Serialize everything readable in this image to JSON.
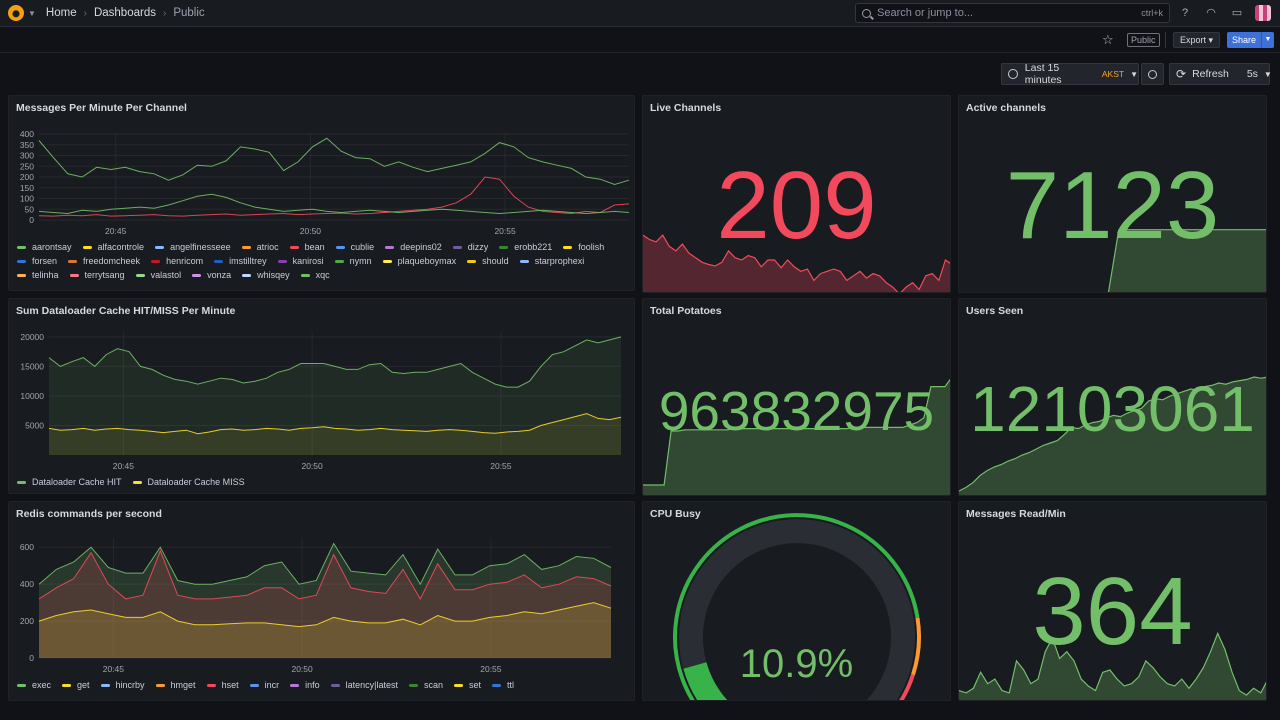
{
  "topbar": {
    "breadcrumb": [
      "Home",
      "Dashboards",
      "Public"
    ],
    "search_placeholder": "Search or jump to...",
    "search_shortcut": "ctrl+k"
  },
  "toolbar": {
    "public_tag": "Public",
    "export_label": "Export",
    "share_label": "Share",
    "time_range": "Last 15 minutes",
    "timezone": "AKST",
    "refresh_label": "Refresh",
    "refresh_interval": "5s"
  },
  "panels": {
    "messages": {
      "title": "Messages Per Minute Per Channel",
      "legend": [
        {
          "name": "aarontsay",
          "color": "#73bf69"
        },
        {
          "name": "alfacontrole",
          "color": "#fade2a"
        },
        {
          "name": "angelfinesseee",
          "color": "#8ab8ff"
        },
        {
          "name": "atrioc",
          "color": "#ff9830"
        },
        {
          "name": "bean",
          "color": "#f2495c"
        },
        {
          "name": "cublie",
          "color": "#5794f2"
        },
        {
          "name": "deepins02",
          "color": "#b877d9"
        },
        {
          "name": "dizzy",
          "color": "#705da0"
        },
        {
          "name": "erobb221",
          "color": "#37872d"
        },
        {
          "name": "foolish",
          "color": "#fade2a"
        },
        {
          "name": "forsen",
          "color": "#3274d9"
        },
        {
          "name": "freedomcheek",
          "color": "#e0752d"
        },
        {
          "name": "henricom",
          "color": "#c4162a"
        },
        {
          "name": "imstilltrey",
          "color": "#1f60c4"
        },
        {
          "name": "kanirosi",
          "color": "#8f3bb8"
        },
        {
          "name": "nymn",
          "color": "#56a64b"
        },
        {
          "name": "plaqueboymax",
          "color": "#ffee52"
        },
        {
          "name": "should",
          "color": "#f2cc0c"
        },
        {
          "name": "starprophexi",
          "color": "#8ab8ff"
        },
        {
          "name": "telinha",
          "color": "#ffb357"
        },
        {
          "name": "terrytsang",
          "color": "#ff7383"
        },
        {
          "name": "valastol",
          "color": "#96d98d"
        },
        {
          "name": "vonza",
          "color": "#ca95e5"
        },
        {
          "name": "whisqey",
          "color": "#c0d8ff"
        },
        {
          "name": "xqc",
          "color": "#73bf69"
        }
      ]
    },
    "cache": {
      "title": "Sum Dataloader Cache HIT/MISS Per Minute",
      "legend": [
        {
          "name": "Dataloader Cache HIT",
          "color": "#73bf69"
        },
        {
          "name": "Dataloader Cache MISS",
          "color": "#fade2a"
        }
      ]
    },
    "redis": {
      "title": "Redis commands per second",
      "legend": [
        {
          "name": "exec",
          "color": "#73bf69"
        },
        {
          "name": "get",
          "color": "#fade2a"
        },
        {
          "name": "hincrby",
          "color": "#8ab8ff"
        },
        {
          "name": "hmget",
          "color": "#ff9830"
        },
        {
          "name": "hset",
          "color": "#f2495c"
        },
        {
          "name": "incr",
          "color": "#5794f2"
        },
        {
          "name": "info",
          "color": "#b877d9"
        },
        {
          "name": "latency|latest",
          "color": "#705da0"
        },
        {
          "name": "scan",
          "color": "#37872d"
        },
        {
          "name": "set",
          "color": "#fade2a"
        },
        {
          "name": "ttl",
          "color": "#3274d9"
        }
      ]
    },
    "live_channels": {
      "title": "Live Channels",
      "value": "209",
      "color": "#f2495c"
    },
    "active_channels": {
      "title": "Active channels",
      "value": "7123",
      "color": "#73bf69"
    },
    "total_potatoes": {
      "title": "Total Potatoes",
      "value": "963832975",
      "color": "#73bf69"
    },
    "users_seen": {
      "title": "Users Seen",
      "value": "12103061",
      "color": "#73bf69"
    },
    "cpu_busy": {
      "title": "CPU Busy",
      "value": "10.9%",
      "percent": 10.9,
      "color": "#73bf69"
    },
    "messages_read": {
      "title": "Messages Read/Min",
      "value": "364",
      "color": "#73bf69"
    }
  },
  "chart_data": [
    {
      "type": "line",
      "title": "Messages Per Minute Per Channel",
      "x_ticks": [
        "20:45",
        "20:50",
        "20:55"
      ],
      "ylim": [
        0,
        400
      ],
      "y_ticks": [
        0,
        50,
        100,
        150,
        200,
        250,
        300,
        350,
        400
      ],
      "series": [
        {
          "name": "xqc",
          "values": [
            370,
            290,
            215,
            200,
            245,
            235,
            245,
            225,
            215,
            185,
            210,
            255,
            250,
            275,
            340,
            330,
            315,
            230,
            270,
            340,
            380,
            320,
            290,
            285,
            250,
            270,
            245,
            225,
            240,
            255,
            270,
            310,
            360,
            340,
            290,
            270,
            255,
            240,
            200,
            190,
            165,
            185
          ]
        },
        {
          "name": "bean",
          "values": [
            20,
            18,
            22,
            20,
            25,
            18,
            20,
            22,
            25,
            20,
            18,
            22,
            25,
            28,
            22,
            25,
            28,
            30,
            25,
            28,
            30,
            32,
            28,
            30,
            35,
            40,
            45,
            50,
            60,
            80,
            120,
            200,
            190,
            110,
            60,
            40,
            35,
            30,
            40,
            35,
            70,
            75
          ]
        },
        {
          "name": "aarontsay",
          "values": [
            40,
            35,
            30,
            45,
            40,
            50,
            55,
            60,
            55,
            70,
            90,
            110,
            120,
            105,
            80,
            60,
            50,
            40,
            45,
            50,
            40,
            35,
            40,
            45,
            40,
            35,
            40,
            45,
            50,
            45,
            40,
            35,
            30,
            35,
            40,
            45,
            40,
            35,
            30,
            35,
            40,
            35
          ]
        }
      ]
    },
    {
      "type": "area",
      "title": "Sum Dataloader Cache HIT/MISS Per Minute",
      "x_ticks": [
        "20:45",
        "20:50",
        "20:55"
      ],
      "ylim": [
        0,
        21000
      ],
      "y_ticks": [
        5000,
        10000,
        15000,
        20000
      ],
      "series": [
        {
          "name": "Dataloader Cache HIT",
          "values": [
            16500,
            15000,
            15800,
            16500,
            15000,
            17000,
            18000,
            17500,
            15000,
            14500,
            13500,
            12800,
            12500,
            12000,
            12500,
            13000,
            12800,
            12200,
            12500,
            13000,
            14000,
            14500,
            15500,
            15500,
            15500,
            15000,
            14500,
            14500,
            15300,
            15500,
            14000,
            13800,
            14000,
            14000,
            14500,
            15000,
            15500,
            14000,
            13000,
            12000,
            11500,
            11500,
            12500,
            15000,
            17000,
            17500,
            18500,
            19500,
            19000,
            19500,
            20000
          ]
        },
        {
          "name": "Dataloader Cache MISS",
          "values": [
            4500,
            4200,
            4300,
            4500,
            4200,
            4400,
            4500,
            4300,
            4200,
            4000,
            3800,
            4000,
            4200,
            3600,
            3900,
            4300,
            4400,
            4200,
            4300,
            4500,
            4400,
            4200,
            4500,
            4600,
            4800,
            4500,
            4400,
            4200,
            4300,
            4500,
            4300,
            4200,
            4100,
            4000,
            4200,
            4300,
            4200,
            4000,
            3800,
            3700,
            3900,
            4000,
            4200,
            5000,
            5500,
            6000,
            6500,
            7000,
            6200,
            6000,
            6400
          ]
        }
      ]
    },
    {
      "type": "area",
      "title": "Redis commands per second",
      "x_ticks": [
        "20:45",
        "20:50",
        "20:55"
      ],
      "ylim": [
        0,
        650
      ],
      "y_ticks": [
        0,
        200,
        400,
        600
      ],
      "series": [
        {
          "name": "exec",
          "values": [
            400,
            480,
            520,
            600,
            490,
            460,
            460,
            600,
            420,
            400,
            400,
            420,
            440,
            500,
            520,
            400,
            420,
            620,
            470,
            460,
            450,
            560,
            400,
            590,
            450,
            450,
            500,
            510,
            560,
            480,
            500,
            550,
            540,
            490
          ]
        },
        {
          "name": "hset",
          "values": [
            320,
            380,
            430,
            570,
            400,
            320,
            340,
            580,
            340,
            320,
            320,
            330,
            340,
            380,
            380,
            320,
            340,
            560,
            380,
            360,
            350,
            480,
            320,
            510,
            370,
            370,
            400,
            410,
            450,
            380,
            400,
            440,
            430,
            390
          ]
        },
        {
          "name": "get",
          "values": [
            200,
            230,
            250,
            260,
            240,
            220,
            220,
            250,
            200,
            180,
            180,
            185,
            190,
            190,
            180,
            170,
            180,
            220,
            200,
            190,
            190,
            210,
            180,
            230,
            200,
            200,
            220,
            230,
            250,
            240,
            260,
            280,
            300,
            270
          ]
        }
      ]
    },
    {
      "type": "area",
      "title": "Live Channels",
      "values": [
        280,
        270,
        265,
        280,
        255,
        245,
        260,
        240,
        230,
        220,
        215,
        212,
        220,
        245,
        230,
        225,
        235,
        230,
        210,
        225,
        225,
        208,
        225,
        210,
        200,
        205,
        180,
        195,
        200,
        205,
        200,
        180,
        190,
        200,
        185,
        195,
        190,
        175,
        165,
        150,
        165,
        175,
        160,
        190,
        195,
        180,
        225,
        215
      ],
      "ylim": [
        150,
        300
      ]
    },
    {
      "type": "area",
      "title": "Active channels",
      "values": [
        7000,
        7000,
        7000,
        7000,
        7000,
        7000,
        7000,
        7000,
        7000,
        7000,
        7000,
        7000,
        7000,
        7000,
        7000,
        7123,
        7123,
        7123,
        7123,
        7123,
        7123,
        7123,
        7123,
        7123,
        7123,
        7123,
        7123,
        7123,
        7123,
        7123
      ],
      "ylim": [
        7000,
        7130
      ]
    },
    {
      "type": "area",
      "title": "Total Potatoes",
      "values": [
        10,
        10,
        10,
        10,
        55,
        55,
        56,
        56,
        56,
        56,
        56,
        56,
        56,
        57,
        57,
        57,
        57,
        57,
        57,
        57,
        57,
        57,
        57,
        57,
        57,
        57,
        57,
        57,
        57,
        57,
        58,
        58,
        58,
        58,
        58,
        58,
        58,
        58,
        60,
        62,
        66,
        92,
        92,
        92,
        100
      ],
      "ylim": [
        0,
        100
      ]
    },
    {
      "type": "area",
      "title": "Users Seen",
      "values": [
        5,
        8,
        12,
        18,
        22,
        25,
        27,
        30,
        32,
        35,
        37,
        40,
        43,
        45,
        47,
        52,
        58,
        57,
        60,
        62,
        63,
        66,
        68,
        67,
        70,
        72,
        74,
        80,
        82,
        81,
        84,
        86,
        88,
        90,
        89,
        92,
        93,
        95,
        94,
        96,
        97,
        98,
        100,
        99,
        100
      ],
      "ylim": [
        0,
        100
      ]
    },
    {
      "type": "area",
      "title": "Messages Read/Min",
      "values": [
        250,
        240,
        260,
        330,
        280,
        300,
        250,
        240,
        380,
        340,
        280,
        300,
        420,
        480,
        390,
        420,
        380,
        300,
        270,
        250,
        330,
        340,
        300,
        270,
        280,
        310,
        380,
        350,
        310,
        280,
        270,
        300,
        260,
        300,
        350,
        420,
        500,
        430,
        330,
        250,
        230,
        260,
        240,
        300
      ],
      "ylim": [
        200,
        550
      ]
    }
  ]
}
